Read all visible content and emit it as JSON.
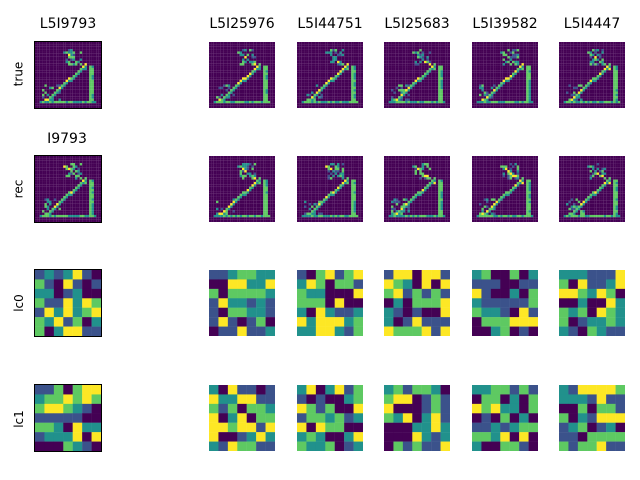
{
  "figure": {
    "column_titles": [
      "L5I9793",
      "L5I25976",
      "L5I44751",
      "L5I25683",
      "L5I39582",
      "L5I4447"
    ],
    "subtitle": "I9793",
    "row_labels": [
      "true",
      "rec",
      "lc0",
      "lc1"
    ],
    "colormap": [
      "#440154",
      "#3b528b",
      "#21918c",
      "#5ec962",
      "#fde725"
    ]
  }
}
